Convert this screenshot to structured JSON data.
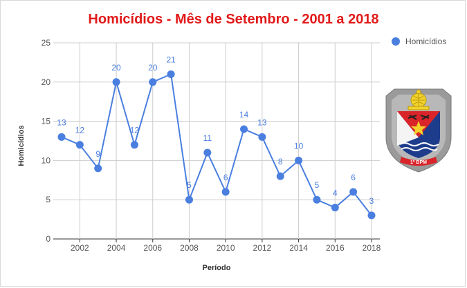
{
  "chart_data": {
    "type": "line",
    "title": "Homicídios - Mês de Setembro - 2001 a 2018",
    "xlabel": "Período",
    "ylabel": "Homicídios",
    "x": [
      2001,
      2002,
      2003,
      2004,
      2005,
      2006,
      2007,
      2008,
      2009,
      2010,
      2011,
      2012,
      2013,
      2014,
      2015,
      2016,
      2017,
      2018
    ],
    "series": [
      {
        "name": "Homicídios",
        "values": [
          13,
          12,
          9,
          20,
          12,
          20,
          21,
          5,
          11,
          6,
          14,
          13,
          8,
          10,
          5,
          4,
          6,
          3
        ]
      }
    ],
    "x_ticks": [
      "2002",
      "2004",
      "2006",
      "2008",
      "2010",
      "2012",
      "2014",
      "2016",
      "2018"
    ],
    "y_ticks": [
      "0",
      "5",
      "10",
      "15",
      "20",
      "25"
    ],
    "ylim": [
      0,
      25
    ],
    "xlim": [
      2001,
      2018
    ],
    "grid": true,
    "legend_position": "top-right",
    "data_labels": true,
    "colors": {
      "series": "#4a7fe0",
      "title": "#e21a1a",
      "label": "#4a7fe0",
      "grid": "#cccccc",
      "axis_text": "#555555"
    }
  },
  "logo": {
    "icon": "police-battalion-badge-icon",
    "text": "1º BPM"
  }
}
